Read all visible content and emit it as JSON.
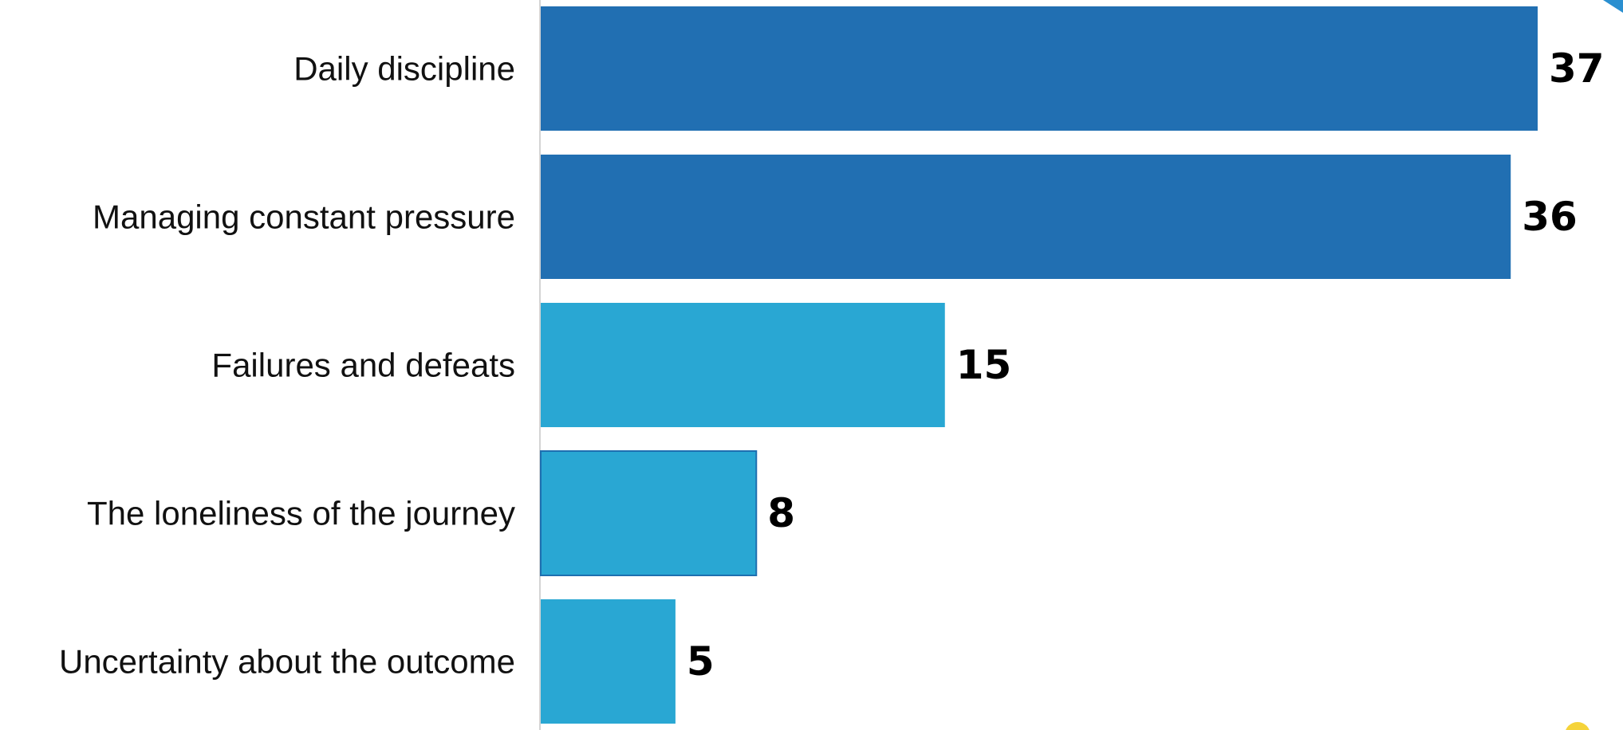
{
  "chart_data": {
    "type": "bar",
    "orientation": "horizontal",
    "categories": [
      "Daily discipline",
      "Managing constant pressure",
      "Failures and defeats",
      "The loneliness of the journey",
      "Uncertainty about the outcome"
    ],
    "values": [
      37,
      36,
      15,
      8,
      5
    ],
    "data_labels": [
      "37",
      "36",
      "15",
      "8",
      "5"
    ],
    "bar_colors": [
      "#216fb2",
      "#216fb2",
      "#29a7d3",
      "#29a7d3",
      "#29a7d3"
    ],
    "xlim": [
      0,
      37
    ],
    "grid": false,
    "legend": "none"
  }
}
